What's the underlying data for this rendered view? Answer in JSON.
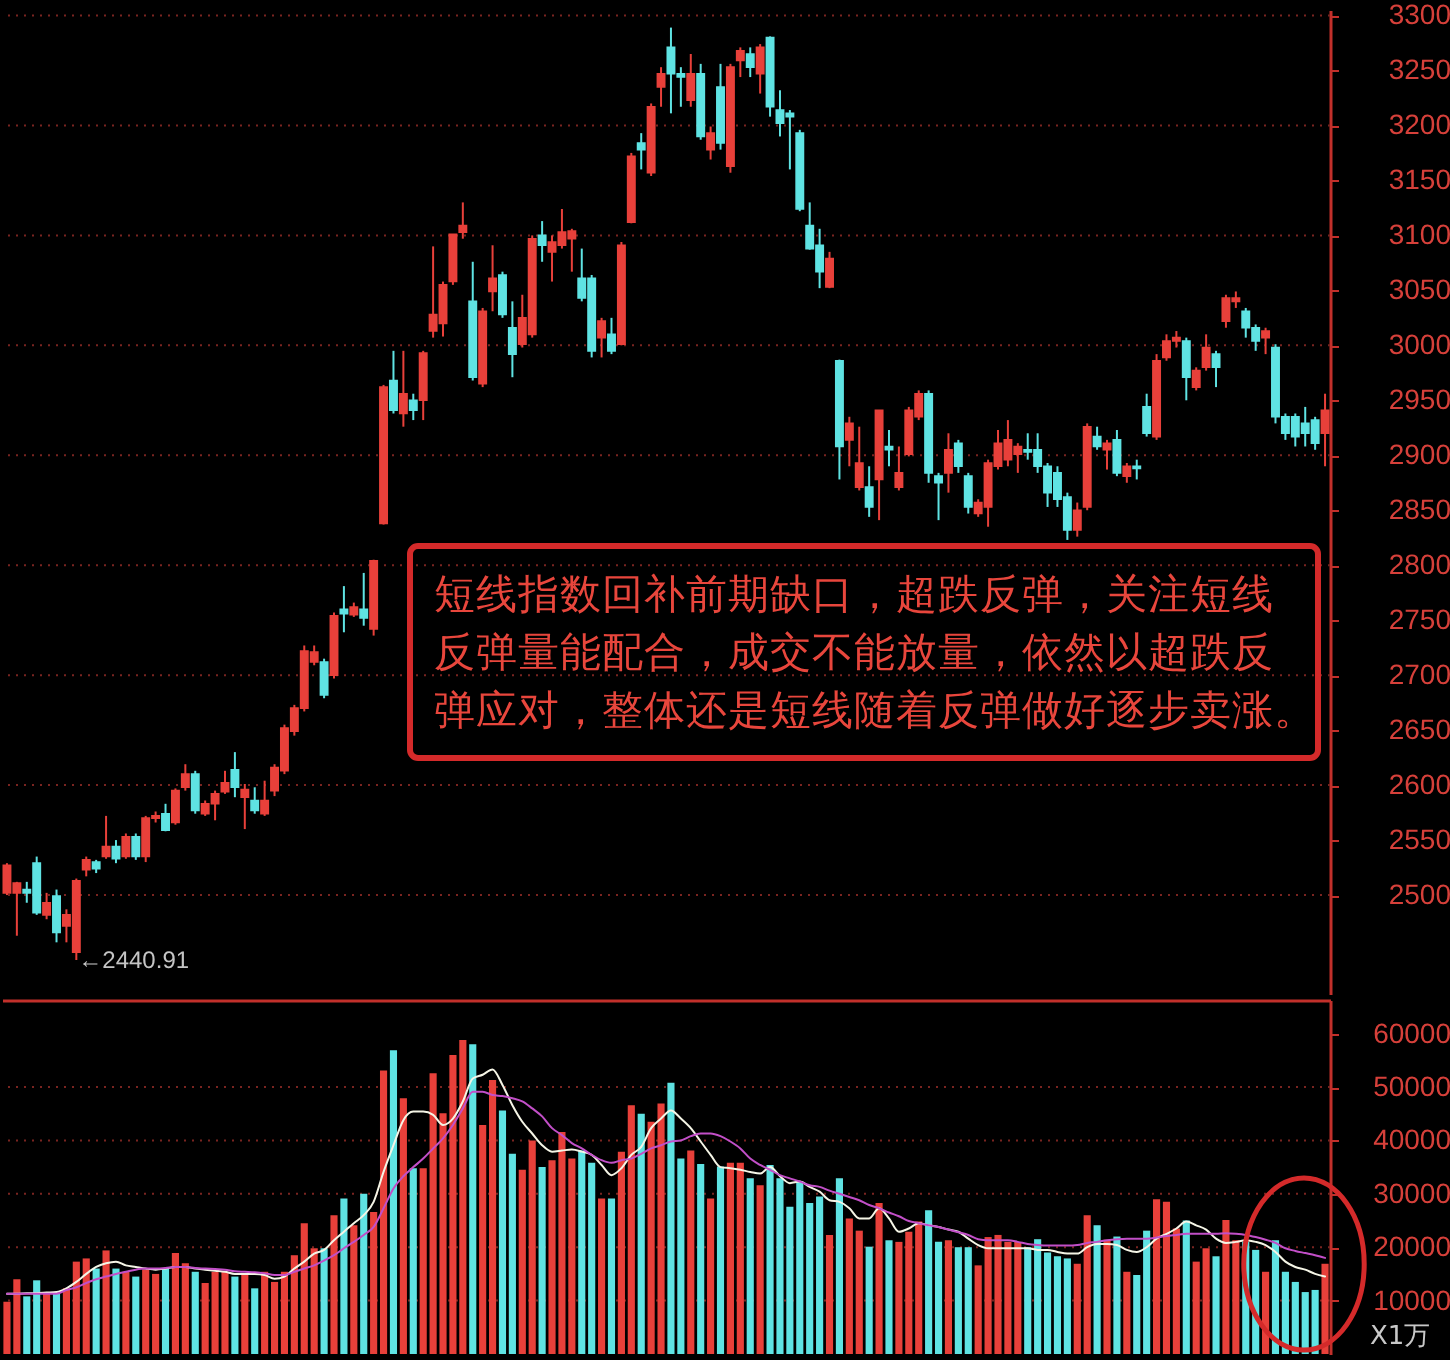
{
  "chart_data": [
    {
      "type": "candlestick",
      "tick_labels": "y",
      "grid": "y",
      "categories": [
        null,
        null,
        null,
        null,
        null,
        null,
        null,
        null,
        null,
        null,
        null,
        null,
        null,
        null,
        null,
        null,
        null,
        null,
        null,
        null,
        null,
        null,
        null,
        null,
        null,
        null,
        null,
        null,
        null,
        null,
        null,
        null,
        null,
        null,
        null,
        null,
        null,
        null,
        null,
        null,
        null,
        null,
        null,
        null,
        null,
        null,
        null,
        null,
        null,
        null,
        null,
        null,
        null,
        null,
        null,
        null,
        null,
        null,
        null,
        null,
        null,
        null,
        null,
        null,
        null,
        null,
        null,
        null,
        null,
        null,
        null,
        null,
        null,
        null,
        null,
        null,
        null,
        null,
        null,
        null,
        null,
        null,
        null,
        null,
        null,
        null,
        null,
        null,
        null,
        null,
        null,
        null,
        null,
        null,
        null,
        null,
        null,
        null,
        null,
        null,
        null,
        null,
        null,
        null,
        null,
        null,
        null,
        null,
        null,
        null,
        null,
        null,
        null,
        null,
        null,
        null,
        null,
        null,
        null,
        null,
        null,
        null,
        null,
        null,
        null,
        null,
        null,
        null,
        null,
        null,
        null,
        null,
        null,
        null
      ],
      "ohlc": [
        [
          2502,
          2529,
          2500,
          2527
        ],
        [
          2502,
          2512,
          2463,
          2511
        ],
        [
          2505,
          2512,
          2493,
          2502
        ],
        [
          2529,
          2535,
          2482,
          2484
        ],
        [
          2482,
          2502,
          2478,
          2493
        ],
        [
          2499,
          2505,
          2457,
          2466
        ],
        [
          2472,
          2487,
          2457,
          2482
        ],
        [
          2448,
          2515,
          2440.91,
          2513
        ],
        [
          2523,
          2535,
          2517,
          2532
        ],
        [
          2530,
          2532,
          2520,
          2524
        ],
        [
          2535,
          2572,
          2533,
          2544
        ],
        [
          2544,
          2550,
          2529,
          2533
        ],
        [
          2535,
          2556,
          2533,
          2553
        ],
        [
          2553,
          2556,
          2532,
          2535
        ],
        [
          2535,
          2572,
          2530,
          2570
        ],
        [
          2570,
          2576,
          2566,
          2572
        ],
        [
          2574,
          2583,
          2558,
          2559
        ],
        [
          2566,
          2597,
          2564,
          2595
        ],
        [
          2598,
          2619,
          2595,
          2610
        ],
        [
          2610,
          2613,
          2574,
          2577
        ],
        [
          2574,
          2586,
          2572,
          2583
        ],
        [
          2583,
          2595,
          2568,
          2592
        ],
        [
          2594,
          2613,
          2592,
          2602
        ],
        [
          2614,
          2630,
          2589,
          2598
        ],
        [
          2589,
          2601,
          2560,
          2596
        ],
        [
          2586,
          2598,
          2574,
          2577
        ],
        [
          2574,
          2604,
          2572,
          2586
        ],
        [
          2595,
          2619,
          2590,
          2616
        ],
        [
          2613,
          2655,
          2610,
          2652
        ],
        [
          2649,
          2673,
          2645,
          2670
        ],
        [
          2670,
          2727,
          2667,
          2722
        ],
        [
          2712,
          2727,
          2709,
          2721
        ],
        [
          2712,
          2715,
          2679,
          2682
        ],
        [
          2700,
          2757,
          2697,
          2754
        ],
        [
          2760,
          2781,
          2739,
          2756
        ],
        [
          2755,
          2766,
          2753,
          2762
        ],
        [
          2760,
          2793,
          2745,
          2752
        ],
        [
          2742,
          2805,
          2736,
          2804
        ],
        [
          2838,
          2964,
          2837,
          2962
        ],
        [
          2968,
          2995,
          2938,
          2941
        ],
        [
          2938,
          2995,
          2926,
          2956
        ],
        [
          2950,
          2956,
          2932,
          2941
        ],
        [
          2950,
          2995,
          2932,
          2993
        ],
        [
          3013,
          3090,
          3007,
          3028
        ],
        [
          3020,
          3058,
          3008,
          3055
        ],
        [
          3058,
          3101,
          3055,
          3101
        ],
        [
          3103,
          3130,
          3097,
          3109
        ],
        [
          3040,
          3076,
          2968,
          2971
        ],
        [
          2965,
          3034,
          2962,
          3031
        ],
        [
          3049,
          3091,
          3031,
          3061
        ],
        [
          3064,
          3067,
          3025,
          3028
        ],
        [
          3016,
          3040,
          2971,
          2992
        ],
        [
          3001,
          3046,
          2998,
          3025
        ],
        [
          3010,
          3100,
          3007,
          3097
        ],
        [
          3100,
          3113,
          3076,
          3091
        ],
        [
          3085,
          3100,
          3058,
          3094
        ],
        [
          3091,
          3124,
          3088,
          3103
        ],
        [
          3097,
          3106,
          3067,
          3104
        ],
        [
          3061,
          3088,
          3040,
          3043
        ],
        [
          3061,
          3064,
          2989,
          2995
        ],
        [
          3007,
          3025,
          2989,
          3022
        ],
        [
          3010,
          3025,
          2992,
          2995
        ],
        [
          3001,
          3094,
          3000,
          3091
        ],
        [
          3112,
          3175,
          3111,
          3172
        ],
        [
          3184,
          3193,
          3160,
          3178
        ],
        [
          3157,
          3220,
          3154,
          3217
        ],
        [
          3235,
          3253,
          3217,
          3247
        ],
        [
          3271,
          3289,
          3211,
          3247
        ],
        [
          3247,
          3253,
          3217,
          3244
        ],
        [
          3223,
          3265,
          3217,
          3247
        ],
        [
          3247,
          3256,
          3187,
          3190
        ],
        [
          3178,
          3199,
          3169,
          3193
        ],
        [
          3235,
          3256,
          3178,
          3184
        ],
        [
          3163,
          3256,
          3157,
          3253
        ],
        [
          3259,
          3271,
          3244,
          3268
        ],
        [
          3265,
          3271,
          3244,
          3253
        ],
        [
          3247,
          3274,
          3229,
          3271
        ],
        [
          3280,
          3281,
          3208,
          3217
        ],
        [
          3214,
          3232,
          3190,
          3202
        ],
        [
          3211,
          3214,
          3160,
          3208
        ],
        [
          3193,
          3196,
          3122,
          3124
        ],
        [
          3109,
          3130,
          3087,
          3088
        ],
        [
          3091,
          3106,
          3052,
          3067
        ],
        [
          3053,
          3085,
          3052,
          3079
        ],
        [
          2986,
          2987,
          2878,
          2908
        ],
        [
          2914,
          2935,
          2890,
          2929
        ],
        [
          2871,
          2926,
          2868,
          2893
        ],
        [
          2871,
          2890,
          2844,
          2853
        ],
        [
          2878,
          2941,
          2841,
          2941
        ],
        [
          2908,
          2923,
          2890,
          2905
        ],
        [
          2871,
          2908,
          2868,
          2884
        ],
        [
          2901,
          2944,
          2899,
          2941
        ],
        [
          2935,
          2959,
          2932,
          2956
        ],
        [
          2956,
          2959,
          2875,
          2884
        ],
        [
          2881,
          2884,
          2841,
          2875
        ],
        [
          2884,
          2920,
          2866,
          2905
        ],
        [
          2911,
          2914,
          2884,
          2890
        ],
        [
          2881,
          2884,
          2847,
          2853
        ],
        [
          2847,
          2860,
          2844,
          2857
        ],
        [
          2853,
          2896,
          2835,
          2893
        ],
        [
          2890,
          2923,
          2887,
          2911
        ],
        [
          2896,
          2932,
          2890,
          2914
        ],
        [
          2901,
          2911,
          2884,
          2908
        ],
        [
          2905,
          2920,
          2896,
          2903
        ],
        [
          2905,
          2920,
          2884,
          2890
        ],
        [
          2890,
          2893,
          2853,
          2866
        ],
        [
          2884,
          2890,
          2853,
          2860
        ],
        [
          2862,
          2866,
          2823,
          2832
        ],
        [
          2832,
          2857,
          2826,
          2850
        ],
        [
          2853,
          2929,
          2850,
          2926
        ],
        [
          2917,
          2926,
          2905,
          2908
        ],
        [
          2905,
          2914,
          2887,
          2911
        ],
        [
          2914,
          2923,
          2881,
          2884
        ],
        [
          2881,
          2893,
          2875,
          2890
        ],
        [
          2890,
          2896,
          2878,
          2888
        ],
        [
          2944,
          2956,
          2917,
          2920
        ],
        [
          2917,
          2992,
          2914,
          2986
        ],
        [
          2989,
          3010,
          2986,
          3004
        ],
        [
          3004,
          3013,
          2998,
          3007
        ],
        [
          3004,
          3007,
          2950,
          2971
        ],
        [
          2962,
          2980,
          2959,
          2977
        ],
        [
          2980,
          3010,
          2977,
          2998
        ],
        [
          2992,
          2995,
          2962,
          2980
        ],
        [
          3022,
          3046,
          3016,
          3043
        ],
        [
          3040,
          3049,
          3034,
          3043
        ],
        [
          3031,
          3034,
          3007,
          3016
        ],
        [
          3016,
          3019,
          2995,
          3004
        ],
        [
          3007,
          3016,
          2992,
          3013
        ],
        [
          2998,
          3001,
          2929,
          2935
        ],
        [
          2935,
          2938,
          2914,
          2920
        ],
        [
          2935,
          2938,
          2908,
          2917
        ],
        [
          2929,
          2944,
          2908,
          2920
        ],
        [
          2932,
          2935,
          2905,
          2911
        ],
        [
          2920,
          2956,
          2890,
          2941
        ]
      ],
      "colors": [
        "#e8403a",
        "#e8403a",
        "#5fe3e3",
        "#5fe3e3",
        "#e8403a",
        "#5fe3e3",
        "#e8403a",
        "#e8403a",
        "#e8403a",
        "#5fe3e3",
        "#e8403a",
        "#5fe3e3",
        "#e8403a",
        "#5fe3e3",
        "#e8403a",
        "#e8403a",
        "#5fe3e3",
        "#e8403a",
        "#e8403a",
        "#5fe3e3",
        "#e8403a",
        "#e8403a",
        "#e8403a",
        "#5fe3e3",
        "#e8403a",
        "#5fe3e3",
        "#e8403a",
        "#e8403a",
        "#e8403a",
        "#e8403a",
        "#e8403a",
        "#e8403a",
        "#5fe3e3",
        "#e8403a",
        "#5fe3e3",
        "#e8403a",
        "#5fe3e3",
        "#e8403a",
        "#e8403a",
        "#5fe3e3",
        "#e8403a",
        "#5fe3e3",
        "#e8403a",
        "#e8403a",
        "#e8403a",
        "#e8403a",
        "#e8403a",
        "#5fe3e3",
        "#e8403a",
        "#e8403a",
        "#5fe3e3",
        "#5fe3e3",
        "#e8403a",
        "#e8403a",
        "#5fe3e3",
        "#e8403a",
        "#e8403a",
        "#e8403a",
        "#5fe3e3",
        "#5fe3e3",
        "#e8403a",
        "#5fe3e3",
        "#e8403a",
        "#e8403a",
        "#5fe3e3",
        "#e8403a",
        "#e8403a",
        "#5fe3e3",
        "#5fe3e3",
        "#e8403a",
        "#5fe3e3",
        "#e8403a",
        "#5fe3e3",
        "#e8403a",
        "#e8403a",
        "#5fe3e3",
        "#e8403a",
        "#5fe3e3",
        "#5fe3e3",
        "#5fe3e3",
        "#5fe3e3",
        "#5fe3e3",
        "#5fe3e3",
        "#e8403a",
        "#5fe3e3",
        "#e8403a",
        "#e8403a",
        "#5fe3e3",
        "#e8403a",
        "#5fe3e3",
        "#e8403a",
        "#e8403a",
        "#e8403a",
        "#5fe3e3",
        "#5fe3e3",
        "#e8403a",
        "#5fe3e3",
        "#5fe3e3",
        "#e8403a",
        "#e8403a",
        "#e8403a",
        "#e8403a",
        "#e8403a",
        "#5fe3e3",
        "#5fe3e3",
        "#5fe3e3",
        "#5fe3e3",
        "#5fe3e3",
        "#e8403a",
        "#e8403a",
        "#5fe3e3",
        "#e8403a",
        "#5fe3e3",
        "#e8403a",
        "#5fe3e3",
        "#5fe3e3",
        "#e8403a",
        "#e8403a",
        "#e8403a",
        "#5fe3e3",
        "#e8403a",
        "#e8403a",
        "#5fe3e3",
        "#e8403a",
        "#e8403a",
        "#5fe3e3",
        "#5fe3e3",
        "#e8403a",
        "#5fe3e3",
        "#5fe3e3",
        "#5fe3e3",
        "#5fe3e3",
        "#5fe3e3",
        "#e8403a"
      ],
      "ylim": [
        2410,
        3305
      ],
      "yticks": [
        2500,
        2550,
        2600,
        2650,
        2700,
        2750,
        2800,
        2850,
        2900,
        2950,
        3000,
        3050,
        3100,
        3150,
        3200,
        3250,
        3300
      ],
      "annotations": [
        "←2440.91",
        "短线指数回补前期缺口，超跌反弹，关注短线反弹量能配合，成交不能放量，依然以超跌反弹应对，整体还是短线随着反弹做好逐步卖涨。"
      ]
    },
    {
      "type": "bar",
      "tick_labels": "y",
      "grid": "y",
      "ylabel": "X1万",
      "categories": [
        null,
        null,
        null,
        null,
        null,
        null,
        null,
        null,
        null,
        null,
        null,
        null,
        null,
        null,
        null,
        null,
        null,
        null,
        null,
        null,
        null,
        null,
        null,
        null,
        null,
        null,
        null,
        null,
        null,
        null,
        null,
        null,
        null,
        null,
        null,
        null,
        null,
        null,
        null,
        null,
        null,
        null,
        null,
        null,
        null,
        null,
        null,
        null,
        null,
        null,
        null,
        null,
        null,
        null,
        null,
        null,
        null,
        null,
        null,
        null,
        null,
        null,
        null,
        null,
        null,
        null,
        null,
        null,
        null,
        null,
        null,
        null,
        null,
        null,
        null,
        null,
        null,
        null,
        null,
        null,
        null,
        null,
        null,
        null,
        null,
        null,
        null,
        null,
        null,
        null,
        null,
        null,
        null,
        null,
        null,
        null,
        null,
        null,
        null,
        null,
        null,
        null,
        null,
        null,
        null,
        null,
        null,
        null,
        null,
        null,
        null,
        null,
        null,
        null,
        null,
        null,
        null,
        null,
        null,
        null,
        null,
        null,
        null,
        null,
        null,
        null,
        null,
        null,
        null,
        null,
        null,
        null,
        null,
        null
      ],
      "ylim": [
        0,
        66300
      ],
      "yticks": [
        10000,
        20000,
        30000,
        40000,
        50000,
        60000
      ],
      "series": [
        {
          "type": "bar",
          "values": [
            9800,
            14000,
            10800,
            13800,
            11600,
            11300,
            12300,
            17300,
            17900,
            16000,
            19400,
            16000,
            15400,
            14500,
            15800,
            15000,
            16000,
            18900,
            17000,
            15400,
            13300,
            15400,
            15400,
            14500,
            14800,
            12300,
            15400,
            13500,
            15400,
            18500,
            24500,
            19800,
            19800,
            26000,
            29100,
            24100,
            30000,
            26600,
            53100,
            56900,
            47900,
            34800,
            34800,
            52600,
            45100,
            56000,
            58800,
            58000,
            42900,
            51300,
            45600,
            37500,
            34500,
            40000,
            35000,
            36300,
            41600,
            36600,
            38100,
            35800,
            29100,
            29100,
            37900,
            46600,
            45000,
            43500,
            46900,
            50800,
            36600,
            38100,
            35600,
            29100,
            35100,
            35800,
            35800,
            32900,
            31600,
            35400,
            32900,
            27600,
            32300,
            28300,
            29500,
            22300,
            32900,
            25400,
            23100,
            20100,
            28300,
            21300,
            21000,
            22900,
            24800,
            26900,
            21000,
            21300,
            20000,
            20000,
            16600,
            21900,
            22300,
            21000,
            21000,
            20000,
            21500,
            19000,
            18300,
            17900,
            16900,
            26000,
            24100,
            21400,
            22000,
            15400,
            14800,
            23100,
            29000,
            28500,
            23500,
            25000,
            17300,
            19800,
            18300,
            25100,
            21300,
            21000,
            19500,
            15400,
            21300,
            15400,
            13500,
            11600,
            12000,
            16900
          ],
          "colors": [
            "#e8403a",
            "#e8403a",
            "#5fe3e3",
            "#5fe3e3",
            "#e8403a",
            "#5fe3e3",
            "#e8403a",
            "#e8403a",
            "#e8403a",
            "#5fe3e3",
            "#e8403a",
            "#5fe3e3",
            "#e8403a",
            "#5fe3e3",
            "#e8403a",
            "#e8403a",
            "#5fe3e3",
            "#e8403a",
            "#e8403a",
            "#5fe3e3",
            "#e8403a",
            "#e8403a",
            "#e8403a",
            "#5fe3e3",
            "#e8403a",
            "#5fe3e3",
            "#e8403a",
            "#e8403a",
            "#e8403a",
            "#e8403a",
            "#e8403a",
            "#e8403a",
            "#5fe3e3",
            "#e8403a",
            "#5fe3e3",
            "#e8403a",
            "#5fe3e3",
            "#e8403a",
            "#e8403a",
            "#5fe3e3",
            "#e8403a",
            "#5fe3e3",
            "#e8403a",
            "#e8403a",
            "#e8403a",
            "#e8403a",
            "#e8403a",
            "#5fe3e3",
            "#e8403a",
            "#e8403a",
            "#5fe3e3",
            "#5fe3e3",
            "#e8403a",
            "#e8403a",
            "#5fe3e3",
            "#e8403a",
            "#e8403a",
            "#e8403a",
            "#5fe3e3",
            "#5fe3e3",
            "#e8403a",
            "#5fe3e3",
            "#e8403a",
            "#e8403a",
            "#5fe3e3",
            "#e8403a",
            "#e8403a",
            "#5fe3e3",
            "#5fe3e3",
            "#e8403a",
            "#5fe3e3",
            "#e8403a",
            "#5fe3e3",
            "#e8403a",
            "#e8403a",
            "#5fe3e3",
            "#e8403a",
            "#5fe3e3",
            "#5fe3e3",
            "#5fe3e3",
            "#5fe3e3",
            "#5fe3e3",
            "#5fe3e3",
            "#e8403a",
            "#5fe3e3",
            "#e8403a",
            "#e8403a",
            "#5fe3e3",
            "#e8403a",
            "#5fe3e3",
            "#e8403a",
            "#e8403a",
            "#e8403a",
            "#5fe3e3",
            "#5fe3e3",
            "#e8403a",
            "#5fe3e3",
            "#5fe3e3",
            "#e8403a",
            "#e8403a",
            "#e8403a",
            "#e8403a",
            "#e8403a",
            "#5fe3e3",
            "#5fe3e3",
            "#5fe3e3",
            "#5fe3e3",
            "#5fe3e3",
            "#e8403a",
            "#e8403a",
            "#5fe3e3",
            "#e8403a",
            "#5fe3e3",
            "#e8403a",
            "#5fe3e3",
            "#5fe3e3",
            "#e8403a",
            "#e8403a",
            "#e8403a",
            "#5fe3e3",
            "#e8403a",
            "#e8403a",
            "#5fe3e3",
            "#e8403a",
            "#e8403a",
            "#5fe3e3",
            "#5fe3e3",
            "#e8403a",
            "#5fe3e3",
            "#5fe3e3",
            "#5fe3e3",
            "#5fe3e3",
            "#5fe3e3",
            "#e8403a"
          ]
        },
        {
          "type": "line",
          "color": "#f5f5e6",
          "values": [
            11300,
            11300,
            11400,
            11400,
            11500,
            11600,
            12300,
            13500,
            15000,
            16300,
            17000,
            17300,
            16600,
            16300,
            16000,
            15800,
            16000,
            16300,
            16300,
            16000,
            15800,
            15600,
            15400,
            15000,
            15000,
            15000,
            14800,
            14100,
            14500,
            16000,
            17300,
            18800,
            19500,
            21300,
            22900,
            24500,
            26000,
            28500,
            34100,
            39100,
            43800,
            45400,
            45400,
            44800,
            42900,
            44100,
            47300,
            51600,
            52300,
            53300,
            50400,
            46600,
            43500,
            41300,
            39100,
            37900,
            38100,
            38300,
            37900,
            37300,
            35400,
            33500,
            34800,
            37300,
            38800,
            42300,
            44100,
            45600,
            44100,
            42300,
            39800,
            37300,
            35000,
            34800,
            34500,
            34100,
            33800,
            35000,
            33300,
            32000,
            32300,
            31300,
            30400,
            28800,
            28500,
            27300,
            25400,
            25400,
            27300,
            25400,
            22900,
            23500,
            24500,
            24100,
            23800,
            23300,
            22900,
            21600,
            20400,
            19800,
            19800,
            19800,
            19800,
            19800,
            19500,
            19500,
            19100,
            18800,
            18800,
            20000,
            20600,
            20600,
            20400,
            19500,
            19100,
            20000,
            21600,
            22500,
            23500,
            24800,
            24100,
            23300,
            21600,
            20800,
            21000,
            21300,
            21000,
            20400,
            19100,
            17300,
            16300,
            15800,
            15000,
            14500
          ]
        },
        {
          "type": "line",
          "color": "#c24fc8",
          "values": [
            11300,
            11300,
            11300,
            11300,
            11300,
            11300,
            12000,
            12500,
            13300,
            14000,
            14500,
            15000,
            15400,
            15800,
            16000,
            16000,
            16100,
            16300,
            16300,
            16100,
            16000,
            15900,
            15800,
            15500,
            15400,
            15300,
            15100,
            14800,
            14800,
            15400,
            16000,
            16600,
            17500,
            18500,
            19800,
            21000,
            22300,
            23800,
            27300,
            31000,
            33300,
            35000,
            36600,
            38500,
            40400,
            42900,
            46000,
            49100,
            49100,
            48500,
            48300,
            47900,
            47300,
            46000,
            44500,
            42300,
            41000,
            39500,
            38500,
            37300,
            36300,
            35800,
            36300,
            36600,
            37500,
            38500,
            39100,
            39800,
            40000,
            40800,
            41300,
            41300,
            40800,
            39800,
            38500,
            36600,
            35400,
            34500,
            33500,
            32900,
            32300,
            31600,
            31300,
            30600,
            30000,
            29400,
            28800,
            27900,
            27300,
            26500,
            25800,
            24900,
            24500,
            24100,
            23800,
            23300,
            22800,
            22300,
            21500,
            21300,
            21300,
            21300,
            21000,
            20600,
            20400,
            20300,
            20300,
            20300,
            20400,
            20800,
            21000,
            21300,
            21500,
            21600,
            21600,
            21600,
            21800,
            22100,
            22300,
            22500,
            22500,
            22500,
            22500,
            22600,
            22500,
            22300,
            21900,
            21400,
            20800,
            19800,
            19300,
            18900,
            18500,
            18000
          ]
        }
      ]
    }
  ]
}
